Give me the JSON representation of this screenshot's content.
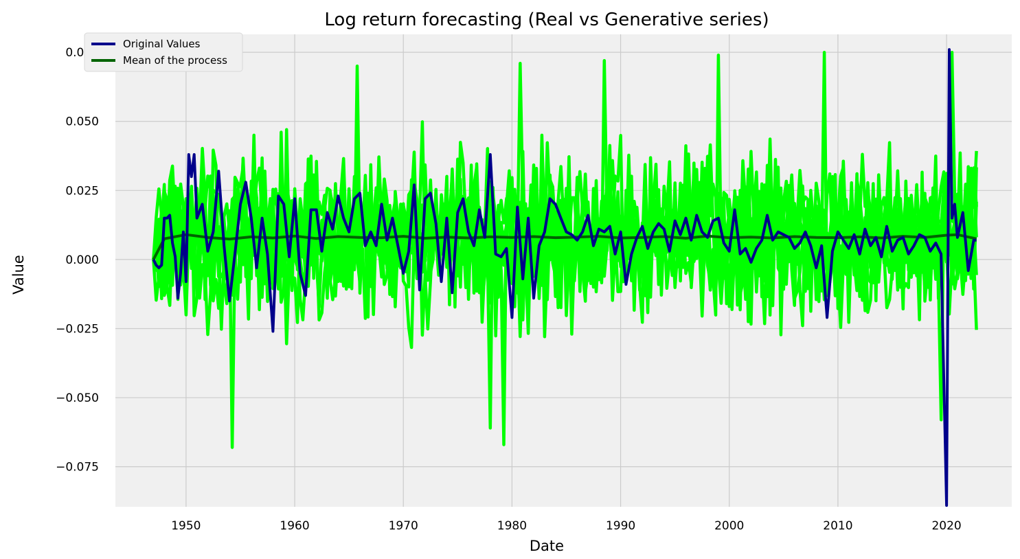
{
  "chart_data": {
    "type": "line",
    "title": "Log return forecasting (Real vs Generative series)",
    "xlabel": "Date",
    "ylabel": "Value",
    "x_ticks": [
      "1950",
      "1960",
      "1970",
      "1980",
      "1990",
      "2000",
      "2010",
      "2020"
    ],
    "y_ticks": [
      "0.075",
      "0.050",
      "0.025",
      "0.000",
      "−0.025",
      "−0.050",
      "−0.075"
    ],
    "xlim": [
      "1943-07-01",
      "2026-01-01"
    ],
    "ylim": [
      -0.0895,
      0.0815
    ],
    "grid": true,
    "legend_position": "upper-left",
    "legend": [
      "Original Values",
      "Mean of the process"
    ],
    "colors": {
      "background": "#f0f0f0",
      "grid": "#cbcbcb",
      "original": "#00008b",
      "mean": "#006400",
      "generated": "#00ff00"
    },
    "generated_band": {
      "frequency": "quarterly",
      "x_start": "1947-01-01",
      "x_end": "2022-10-01",
      "y_low_range": [
        -0.068,
        -0.025
      ],
      "y_high_range": [
        0.035,
        0.075
      ],
      "representative_peaks": [
        {
          "x": "1954-04-01",
          "y": -0.068
        },
        {
          "x": "1979-04-01",
          "y": -0.067
        },
        {
          "x": "1978-01-01",
          "y": -0.061
        },
        {
          "x": "2019-07-01",
          "y": -0.058
        },
        {
          "x": "2008-10-01",
          "y": 0.075
        },
        {
          "x": "1999-01-01",
          "y": 0.074
        },
        {
          "x": "1980-10-01",
          "y": 0.071
        },
        {
          "x": "1965-10-01",
          "y": 0.07
        },
        {
          "x": "1988-07-01",
          "y": 0.072
        },
        {
          "x": "2020-07-01",
          "y": 0.075
        }
      ]
    },
    "series": [
      {
        "name": "Original Values",
        "x": [
          "1947-01-01",
          "1947-04-01",
          "1947-07-01",
          "1947-10-01",
          "1948-01-01",
          "1948-04-01",
          "1948-07-01",
          "1948-10-01",
          "1949-01-01",
          "1949-04-01",
          "1949-07-01",
          "1949-10-01",
          "1950-01-01",
          "1950-04-01",
          "1950-07-01",
          "1950-10-01",
          "1951-01-01",
          "1951-07-01",
          "1952-01-01",
          "1952-07-01",
          "1953-01-01",
          "1953-07-01",
          "1954-01-01",
          "1954-07-01",
          "1955-01-01",
          "1955-07-01",
          "1956-01-01",
          "1956-07-01",
          "1957-01-01",
          "1957-07-01",
          "1958-01-01",
          "1958-07-01",
          "1959-01-01",
          "1959-07-01",
          "1960-01-01",
          "1960-07-01",
          "1961-01-01",
          "1961-07-01",
          "1962-01-01",
          "1962-07-01",
          "1963-01-01",
          "1963-07-01",
          "1964-01-01",
          "1964-07-01",
          "1965-01-01",
          "1965-07-01",
          "1966-01-01",
          "1966-07-01",
          "1967-01-01",
          "1967-07-01",
          "1968-01-01",
          "1968-07-01",
          "1969-01-01",
          "1969-07-01",
          "1970-01-01",
          "1970-07-01",
          "1971-01-01",
          "1971-07-01",
          "1972-01-01",
          "1972-07-01",
          "1973-01-01",
          "1973-07-01",
          "1974-01-01",
          "1974-07-01",
          "1975-01-01",
          "1975-07-01",
          "1976-01-01",
          "1976-07-01",
          "1977-01-01",
          "1977-07-01",
          "1978-01-01",
          "1978-07-01",
          "1979-01-01",
          "1979-07-01",
          "1980-01-01",
          "1980-07-01",
          "1981-01-01",
          "1981-07-01",
          "1982-01-01",
          "1982-07-01",
          "1983-01-01",
          "1983-07-01",
          "1984-01-01",
          "1984-07-01",
          "1985-01-01",
          "1985-07-01",
          "1986-01-01",
          "1986-07-01",
          "1987-01-01",
          "1987-07-01",
          "1988-01-01",
          "1988-07-01",
          "1989-01-01",
          "1989-07-01",
          "1990-01-01",
          "1990-07-01",
          "1991-01-01",
          "1991-07-01",
          "1992-01-01",
          "1992-07-01",
          "1993-01-01",
          "1993-07-01",
          "1994-01-01",
          "1994-07-01",
          "1995-01-01",
          "1995-07-01",
          "1996-01-01",
          "1996-07-01",
          "1997-01-01",
          "1997-07-01",
          "1998-01-01",
          "1998-07-01",
          "1999-01-01",
          "1999-07-01",
          "2000-01-01",
          "2000-07-01",
          "2001-01-01",
          "2001-07-01",
          "2002-01-01",
          "2002-07-01",
          "2003-01-01",
          "2003-07-01",
          "2004-01-01",
          "2004-07-01",
          "2005-01-01",
          "2005-07-01",
          "2006-01-01",
          "2006-07-01",
          "2007-01-01",
          "2007-07-01",
          "2008-01-01",
          "2008-07-01",
          "2009-01-01",
          "2009-07-01",
          "2010-01-01",
          "2010-07-01",
          "2011-01-01",
          "2011-07-01",
          "2012-01-01",
          "2012-07-01",
          "2013-01-01",
          "2013-07-01",
          "2014-01-01",
          "2014-07-01",
          "2015-01-01",
          "2015-07-01",
          "2016-01-01",
          "2016-07-01",
          "2017-01-01",
          "2017-07-01",
          "2018-01-01",
          "2018-07-01",
          "2019-01-01",
          "2019-07-01",
          "2020-01-01",
          "2020-04-01",
          "2020-07-01",
          "2020-10-01",
          "2021-01-01",
          "2021-07-01",
          "2022-01-01",
          "2022-07-01",
          "2022-10-01"
        ],
        "y": [
          0.0,
          -0.002,
          -0.003,
          -0.002,
          0.015,
          0.015,
          0.016,
          0.006,
          0.001,
          -0.014,
          -0.005,
          0.01,
          -0.008,
          0.038,
          0.03,
          0.038,
          0.015,
          0.02,
          0.003,
          0.01,
          0.032,
          0.005,
          -0.015,
          0.002,
          0.02,
          0.028,
          0.015,
          -0.003,
          0.015,
          0.002,
          -0.026,
          0.023,
          0.02,
          0.001,
          0.022,
          -0.005,
          -0.013,
          0.018,
          0.018,
          0.003,
          0.017,
          0.011,
          0.023,
          0.015,
          0.01,
          0.022,
          0.024,
          0.005,
          0.01,
          0.005,
          0.02,
          0.007,
          0.015,
          0.005,
          -0.005,
          0.003,
          0.027,
          -0.011,
          0.022,
          0.024,
          0.013,
          -0.008,
          0.015,
          -0.012,
          0.017,
          0.022,
          0.01,
          0.005,
          0.018,
          0.008,
          0.038,
          0.002,
          0.001,
          0.004,
          -0.021,
          0.019,
          -0.007,
          0.015,
          -0.014,
          0.005,
          0.01,
          0.022,
          0.02,
          0.015,
          0.01,
          0.009,
          0.007,
          0.01,
          0.016,
          0.005,
          0.011,
          0.01,
          0.012,
          0.002,
          0.01,
          -0.009,
          0.002,
          0.008,
          0.012,
          0.004,
          0.01,
          0.013,
          0.011,
          0.003,
          0.014,
          0.009,
          0.015,
          0.007,
          0.016,
          0.01,
          0.008,
          0.014,
          0.015,
          0.006,
          0.003,
          0.018,
          0.002,
          0.004,
          -0.001,
          0.004,
          0.007,
          0.016,
          0.007,
          0.01,
          0.009,
          0.008,
          0.004,
          0.006,
          0.01,
          0.005,
          -0.003,
          0.005,
          -0.021,
          0.003,
          0.01,
          0.007,
          0.004,
          0.009,
          0.002,
          0.011,
          0.005,
          0.008,
          0.001,
          0.012,
          0.003,
          0.007,
          0.008,
          0.002,
          0.005,
          0.009,
          0.008,
          0.003,
          0.006,
          0.002,
          -0.089,
          0.076,
          0.015,
          0.02,
          0.008,
          0.017,
          -0.004,
          0.007,
          0.007
        ]
      },
      {
        "name": "Mean of the process",
        "x": [
          "1947-01-01",
          "1948-01-01",
          "1950-01-01",
          "1952-01-01",
          "1954-01-01",
          "1956-01-01",
          "1958-01-01",
          "1960-01-01",
          "1962-01-01",
          "1964-01-01",
          "1966-01-01",
          "1968-01-01",
          "1970-01-01",
          "1972-01-01",
          "1974-01-01",
          "1976-01-01",
          "1978-01-01",
          "1980-01-01",
          "1982-01-01",
          "1984-01-01",
          "1986-01-01",
          "1988-01-01",
          "1990-01-01",
          "1992-01-01",
          "1994-01-01",
          "1996-01-01",
          "1998-01-01",
          "2000-01-01",
          "2002-01-01",
          "2004-01-01",
          "2006-01-01",
          "2008-01-01",
          "2010-01-01",
          "2012-01-01",
          "2014-01-01",
          "2016-01-01",
          "2018-01-01",
          "2020-01-01",
          "2021-01-01",
          "2022-10-01"
        ],
        "y": [
          0.0,
          0.0075,
          0.009,
          0.008,
          0.0074,
          0.0082,
          0.0078,
          0.0085,
          0.0076,
          0.0083,
          0.008,
          0.0079,
          0.0084,
          0.0077,
          0.0081,
          0.0078,
          0.0082,
          0.008,
          0.0083,
          0.0079,
          0.0081,
          0.0084,
          0.0078,
          0.008,
          0.0083,
          0.0077,
          0.0085,
          0.0079,
          0.0081,
          0.0078,
          0.0083,
          0.008,
          0.0079,
          0.0082,
          0.0078,
          0.0084,
          0.008,
          0.0088,
          0.009,
          0.0075
        ]
      }
    ]
  }
}
